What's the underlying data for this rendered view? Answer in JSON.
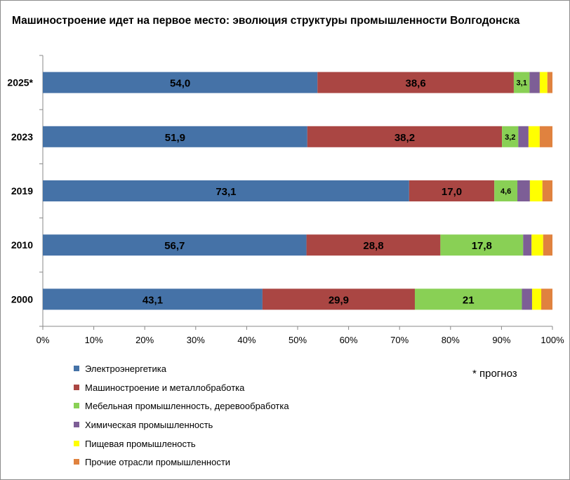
{
  "chart_data": {
    "type": "bar",
    "orientation": "horizontal",
    "stacked": "percent",
    "title": "Машиностроение идет на первое место: эволюция структуры промышленности Волгодонска",
    "categories": [
      "2025*",
      "2023",
      "2019",
      "2010",
      "2000"
    ],
    "series": [
      {
        "name": "Электроэнергетика",
        "color": "#4572a7",
        "values": [
          54.0,
          51.9,
          73.1,
          56.7,
          43.1
        ],
        "labels": [
          "54,0",
          "51,9",
          "73,1",
          "56,7",
          "43,1"
        ]
      },
      {
        "name": "Машиностроение и металлобработка",
        "color": "#aa4643",
        "values": [
          38.6,
          38.2,
          17.0,
          28.8,
          29.9
        ],
        "labels": [
          "38,6",
          "38,2",
          "17,0",
          "28,8",
          "29,9"
        ]
      },
      {
        "name": "Мебельная промышленность, деревообработка",
        "color": "#89d055",
        "values": [
          3.1,
          3.2,
          4.6,
          17.8,
          21
        ],
        "labels": [
          "3,1",
          "3,2",
          "4,6",
          "17,8",
          "21"
        ]
      },
      {
        "name": "Химическая промышленность",
        "color": "#7d5e96",
        "values": [
          2.0,
          2.0,
          2.5,
          1.8,
          2.0
        ],
        "labels": [
          "",
          "",
          "",
          "",
          ""
        ]
      },
      {
        "name": "Пищевая промышленость",
        "color": "#ffff00",
        "values": [
          1.5,
          2.2,
          2.5,
          2.5,
          1.8
        ],
        "labels": [
          "",
          "",
          "",
          "",
          ""
        ]
      },
      {
        "name": "Прочие отрасли промышленности",
        "color": "#e0823f",
        "values": [
          1.0,
          2.5,
          2.0,
          2.0,
          2.2
        ],
        "labels": [
          "",
          "",
          "",
          "",
          ""
        ]
      }
    ],
    "xlim": [
      0,
      100
    ],
    "xticks": [
      "0%",
      "10%",
      "20%",
      "30%",
      "40%",
      "50%",
      "60%",
      "70%",
      "80%",
      "90%",
      "100%"
    ],
    "xlabel": "",
    "ylabel": "",
    "grid": false,
    "legend_position": "bottom-left"
  },
  "note": "* прогноз"
}
